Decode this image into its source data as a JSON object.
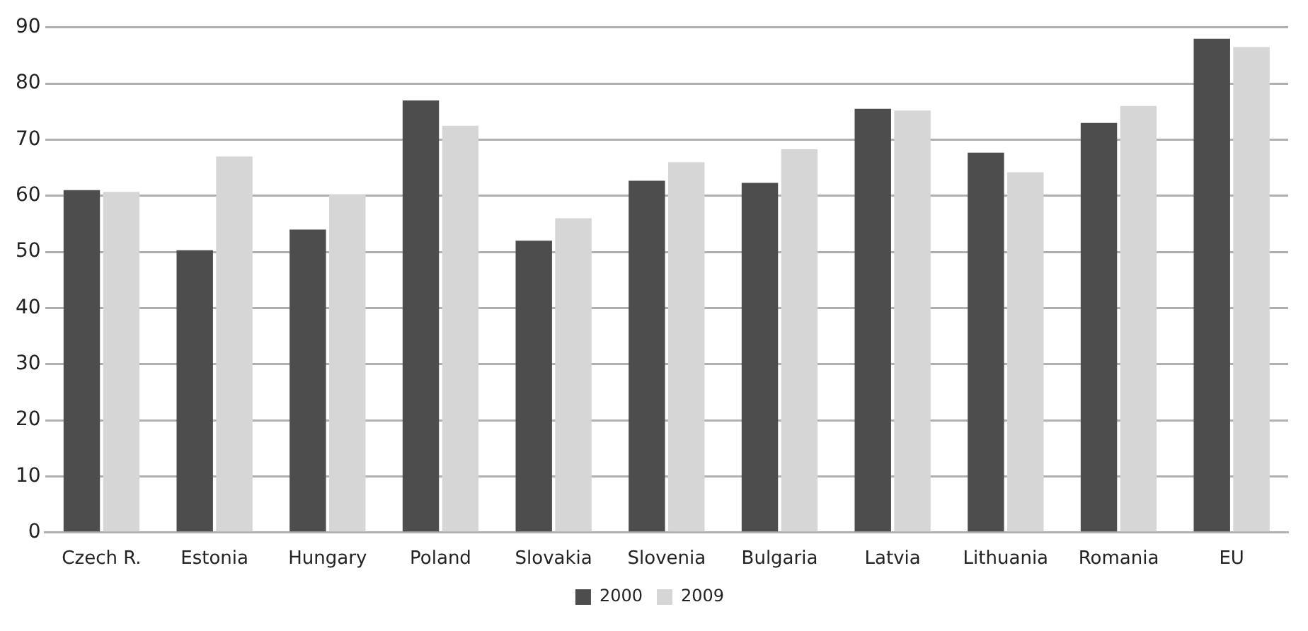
{
  "chart_data": {
    "type": "bar",
    "categories": [
      "Czech R.",
      "Estonia",
      "Hungary",
      "Poland",
      "Slovakia",
      "Slovenia",
      "Bulgaria",
      "Latvia",
      "Lithuania",
      "Romania",
      "EU"
    ],
    "series": [
      {
        "name": "2000",
        "color": "#4d4d4d",
        "values": [
          61,
          50.3,
          54,
          77,
          52,
          62.7,
          62.3,
          75.5,
          67.7,
          73,
          88
        ]
      },
      {
        "name": "2009",
        "color": "#d6d6d6",
        "values": [
          60.7,
          67,
          60.3,
          72.5,
          56,
          66,
          68.3,
          75.2,
          64.2,
          76,
          86.5
        ]
      }
    ],
    "ylim": [
      0,
      90
    ],
    "yticks": [
      0,
      10,
      20,
      30,
      40,
      50,
      60,
      70,
      80,
      90
    ],
    "grid": "y",
    "legend": "bottom"
  }
}
